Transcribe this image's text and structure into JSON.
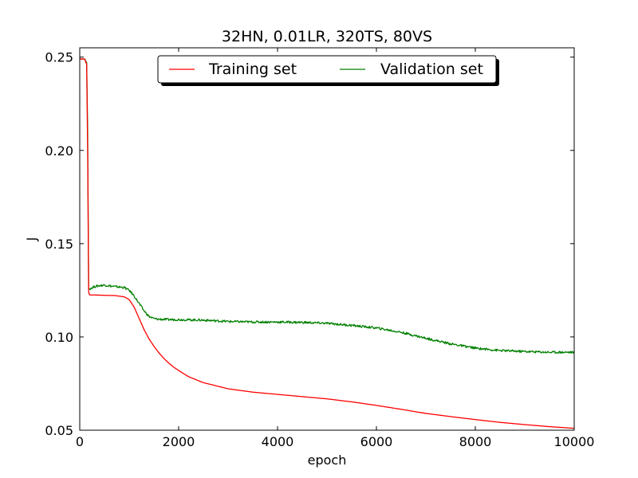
{
  "chart_data": {
    "type": "line",
    "title": "32HN, 0.01LR, 320TS, 80VS",
    "xlabel": "epoch",
    "ylabel": "J",
    "xlim": [
      0,
      10000
    ],
    "ylim": [
      0.05,
      0.255
    ],
    "x_ticks": [
      0,
      2000,
      4000,
      6000,
      8000,
      10000
    ],
    "x_tick_labels": [
      "0",
      "2000",
      "4000",
      "6000",
      "8000",
      "10000"
    ],
    "y_ticks": [
      0.05,
      0.1,
      0.15,
      0.2,
      0.25
    ],
    "y_tick_labels": [
      "0.05",
      "0.10",
      "0.15",
      "0.20",
      "0.25"
    ],
    "grid": false,
    "legend_position": "top-center",
    "legend_columns": 2,
    "series": [
      {
        "name": "Training set",
        "color": "#ff0000",
        "x": [
          0,
          100,
          140,
          160,
          180,
          200,
          300,
          500,
          700,
          900,
          1000,
          1100,
          1200,
          1300,
          1400,
          1500,
          1600,
          1700,
          1800,
          1900,
          2000,
          2200,
          2500,
          3000,
          3500,
          4000,
          4500,
          5000,
          5500,
          6000,
          6500,
          7000,
          7500,
          8000,
          8500,
          9000,
          9500,
          10000
        ],
        "y": [
          0.249,
          0.249,
          0.246,
          0.2,
          0.124,
          0.1225,
          0.1225,
          0.1223,
          0.1222,
          0.1215,
          0.12,
          0.116,
          0.11,
          0.104,
          0.099,
          0.095,
          0.0915,
          0.0885,
          0.086,
          0.0838,
          0.082,
          0.0787,
          0.0755,
          0.0722,
          0.0704,
          0.0692,
          0.068,
          0.0668,
          0.0652,
          0.0633,
          0.0612,
          0.059,
          0.0573,
          0.0557,
          0.0542,
          0.053,
          0.0519,
          0.051
        ]
      },
      {
        "name": "Validation set",
        "color": "#008000",
        "noise": 0.0006,
        "x": [
          0,
          100,
          140,
          160,
          180,
          200,
          300,
          400,
          500,
          700,
          900,
          1000,
          1100,
          1200,
          1300,
          1400,
          1500,
          1600,
          1800,
          2000,
          2500,
          3000,
          3500,
          4000,
          4500,
          5000,
          5500,
          6000,
          6500,
          7000,
          7500,
          8000,
          8500,
          9000,
          9500,
          10000
        ],
        "y": [
          0.249,
          0.249,
          0.247,
          0.21,
          0.126,
          0.1258,
          0.127,
          0.1275,
          0.1278,
          0.127,
          0.1265,
          0.125,
          0.122,
          0.118,
          0.114,
          0.111,
          0.1098,
          0.1095,
          0.1093,
          0.1093,
          0.109,
          0.1083,
          0.108,
          0.108,
          0.1078,
          0.1073,
          0.1062,
          0.1048,
          0.1025,
          0.0993,
          0.0963,
          0.094,
          0.0927,
          0.0922,
          0.0918,
          0.0918
        ]
      }
    ]
  }
}
